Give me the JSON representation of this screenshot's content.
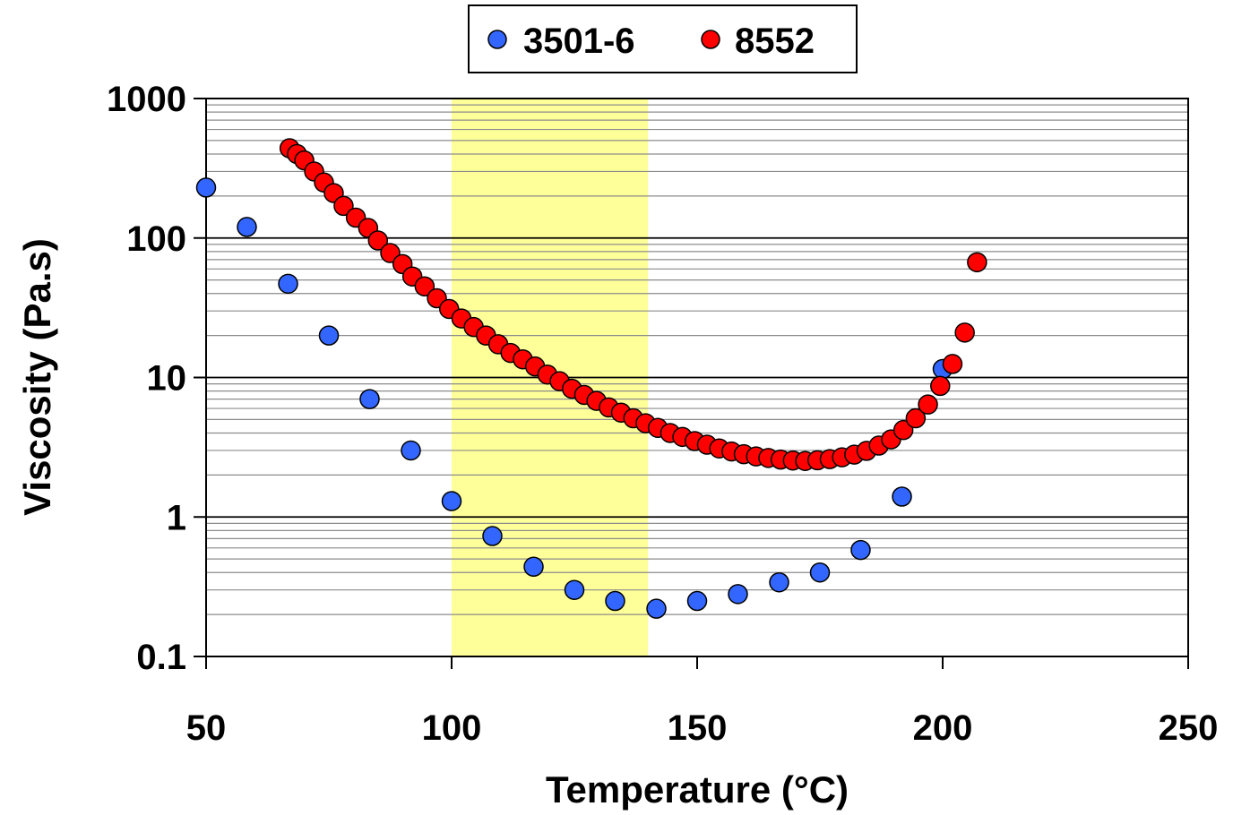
{
  "chart_data": {
    "type": "scatter",
    "title": "",
    "xlabel": "Temperature (°C)",
    "ylabel": "Viscosity (Pa.s)",
    "xlim": [
      50,
      250
    ],
    "ylim": [
      0.1,
      1000
    ],
    "yscale": "log",
    "x_ticks": [
      50,
      100,
      150,
      200,
      250
    ],
    "x_tick_labels": [
      "50",
      "100",
      "150",
      "200",
      "250"
    ],
    "y_ticks": [
      0.1,
      1,
      10,
      100,
      1000
    ],
    "y_tick_labels": [
      "0.1",
      "1",
      "10",
      "100",
      "1000"
    ],
    "grid": "horizontal major and minor",
    "legend_position": "top-center",
    "highlight_band": {
      "x_range": [
        100,
        140
      ],
      "color": "#ffff99"
    },
    "series": [
      {
        "name": "3501-6",
        "color": "#3366ff",
        "x": [
          50,
          58.3,
          66.7,
          75,
          83.3,
          91.7,
          100,
          108.3,
          116.7,
          125,
          133.3,
          141.7,
          150,
          158.3,
          166.7,
          175,
          183.3,
          191.7,
          200
        ],
        "y": [
          230,
          120,
          47,
          20,
          7,
          3,
          1.3,
          0.73,
          0.44,
          0.3,
          0.25,
          0.22,
          0.25,
          0.28,
          0.34,
          0.4,
          0.58,
          1.4,
          11.5
        ]
      },
      {
        "name": "8552",
        "color": "#ff0000",
        "x": [
          67,
          68.5,
          70,
          72,
          74,
          76,
          78,
          80.5,
          83,
          85,
          87.5,
          90,
          92,
          94.5,
          97,
          99.5,
          102,
          104.5,
          107,
          109.5,
          112,
          114.5,
          117,
          119.5,
          122,
          124.5,
          127,
          129.5,
          132,
          134.5,
          137,
          139.5,
          142,
          144.5,
          147,
          149.5,
          152,
          154.5,
          157,
          159.5,
          162,
          164.5,
          167,
          169.5,
          172,
          174.5,
          177,
          179.5,
          182,
          184.5,
          187,
          189.5,
          192,
          194.5,
          197,
          199.5,
          202,
          204.5,
          207
        ],
        "y": [
          440,
          400,
          360,
          300,
          250,
          210,
          170,
          140,
          118,
          96,
          78,
          65,
          53,
          45,
          37,
          31,
          26.5,
          23,
          20,
          17.3,
          15,
          13.5,
          12,
          10.5,
          9.4,
          8.3,
          7.5,
          6.8,
          6.1,
          5.6,
          5.1,
          4.7,
          4.35,
          4,
          3.75,
          3.5,
          3.3,
          3.1,
          2.95,
          2.82,
          2.72,
          2.65,
          2.58,
          2.54,
          2.52,
          2.55,
          2.6,
          2.68,
          2.8,
          2.98,
          3.25,
          3.6,
          4.2,
          5.1,
          6.4,
          8.7,
          12.5,
          21,
          67
        ]
      }
    ]
  }
}
